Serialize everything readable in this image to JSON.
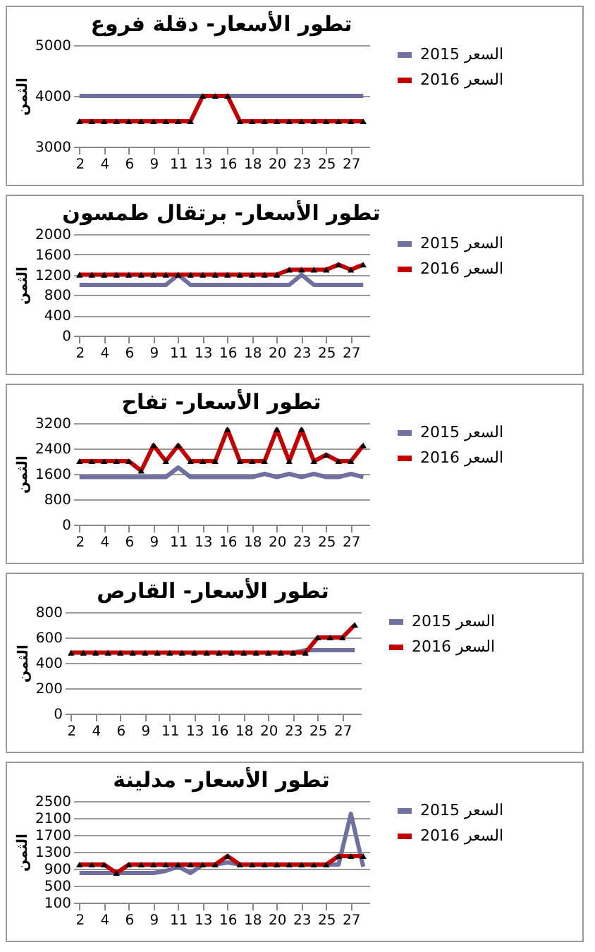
{
  "chart_data": [
    {
      "type": "line",
      "title": "تطور الأسعار- دقلة فروع",
      "ylabel": "الثمن",
      "categories": [
        "2",
        null,
        "4",
        null,
        "6",
        null,
        "9",
        null,
        "11",
        null,
        "13",
        null,
        "16",
        null,
        "18",
        null,
        "20",
        null,
        "23",
        null,
        "25",
        null,
        "27",
        null
      ],
      "ylim": [
        3000,
        5000
      ],
      "yticks": [
        3000,
        4000,
        5000
      ],
      "grid": "y",
      "legend": "right",
      "series": [
        {
          "name": "السعر 2015",
          "color": "#7070a0",
          "marker": "none",
          "values": [
            4000,
            4000,
            4000,
            4000,
            4000,
            4000,
            4000,
            4000,
            4000,
            4000,
            4000,
            4000,
            4000,
            4000,
            4000,
            4000,
            4000,
            4000,
            4000,
            4000,
            4000,
            4000,
            4000,
            4000
          ]
        },
        {
          "name": "السعر 2016",
          "color": "#c00000",
          "marker": "triangle",
          "values": [
            3500,
            3500,
            3500,
            3500,
            3500,
            3500,
            3500,
            3500,
            3500,
            3500,
            4000,
            4000,
            4000,
            3500,
            3500,
            3500,
            3500,
            3500,
            3500,
            3500,
            3500,
            3500,
            3500,
            3500
          ]
        }
      ]
    },
    {
      "type": "line",
      "title": "تطور الأسعار- برتقال طمسون",
      "ylabel": "الثمن",
      "categories": [
        "2",
        null,
        "4",
        null,
        "6",
        null,
        "9",
        null,
        "11",
        null,
        "13",
        null,
        "16",
        null,
        "18",
        null,
        "20",
        null,
        "23",
        null,
        "25",
        null,
        "27",
        null
      ],
      "ylim": [
        0,
        2000
      ],
      "yticks": [
        0,
        400,
        800,
        1200,
        1600,
        2000
      ],
      "grid": "y",
      "legend": "right",
      "series": [
        {
          "name": "السعر 2015",
          "color": "#7070a0",
          "marker": "none",
          "values": [
            1000,
            1000,
            1000,
            1000,
            1000,
            1000,
            1000,
            1000,
            1200,
            1000,
            1000,
            1000,
            1000,
            1000,
            1000,
            1000,
            1000,
            1000,
            1200,
            1000,
            1000,
            1000,
            1000,
            1000
          ]
        },
        {
          "name": "السعر 2016",
          "color": "#c00000",
          "marker": "triangle",
          "values": [
            1200,
            1200,
            1200,
            1200,
            1200,
            1200,
            1200,
            1200,
            1200,
            1200,
            1200,
            1200,
            1200,
            1200,
            1200,
            1200,
            1200,
            1300,
            1300,
            1300,
            1300,
            1400,
            1300,
            1400
          ]
        }
      ]
    },
    {
      "type": "line",
      "title": "تطور الأسعار- تفاح",
      "ylabel": "الثمن",
      "categories": [
        "2",
        null,
        "4",
        null,
        "6",
        null,
        "9",
        null,
        "11",
        null,
        "13",
        null,
        "16",
        null,
        "18",
        null,
        "20",
        null,
        "23",
        null,
        "25",
        null,
        "27",
        null
      ],
      "ylim": [
        0,
        3200
      ],
      "yticks": [
        0,
        800,
        1600,
        2400,
        3200
      ],
      "grid": "y",
      "legend": "right",
      "series": [
        {
          "name": "السعر 2015",
          "color": "#7070a0",
          "marker": "none",
          "values": [
            1500,
            1500,
            1500,
            1500,
            1500,
            1500,
            1500,
            1500,
            1800,
            1500,
            1500,
            1500,
            1500,
            1500,
            1500,
            1600,
            1500,
            1600,
            1500,
            1600,
            1500,
            1500,
            1600,
            1500
          ]
        },
        {
          "name": "السعر 2016",
          "color": "#c00000",
          "marker": "triangle",
          "values": [
            2000,
            2000,
            2000,
            2000,
            2000,
            1700,
            2500,
            2000,
            2500,
            2000,
            2000,
            2000,
            3000,
            2000,
            2000,
            2000,
            3000,
            2000,
            3000,
            2000,
            2200,
            2000,
            2000,
            2500
          ]
        }
      ]
    },
    {
      "type": "line",
      "title": "تطور الأسعار- القارص",
      "ylabel": "الثمن",
      "categories": [
        "2",
        null,
        "4",
        null,
        "6",
        null,
        "9",
        null,
        "11",
        null,
        "13",
        null,
        "16",
        null,
        "18",
        null,
        "20",
        null,
        "23",
        null,
        "25",
        null,
        "27",
        null
      ],
      "ylim": [
        0,
        800
      ],
      "yticks": [
        0,
        200,
        400,
        600,
        800
      ],
      "grid": "y",
      "legend": "right",
      "series": [
        {
          "name": "السعر 2015",
          "color": "#7070a0",
          "marker": "none",
          "values": [
            null,
            null,
            null,
            null,
            null,
            null,
            null,
            null,
            null,
            null,
            null,
            null,
            null,
            null,
            null,
            null,
            null,
            null,
            480,
            500,
            500,
            500,
            500,
            500
          ]
        },
        {
          "name": "السعر 2016",
          "color": "#c00000",
          "marker": "triangle",
          "values": [
            480,
            480,
            480,
            480,
            480,
            480,
            480,
            480,
            480,
            480,
            480,
            480,
            480,
            480,
            480,
            480,
            480,
            480,
            480,
            480,
            600,
            600,
            600,
            700
          ]
        }
      ]
    },
    {
      "type": "line",
      "title": "تطور الأسعار- مدلينة",
      "ylabel": "الثمن",
      "categories": [
        "2",
        null,
        "4",
        null,
        "6",
        null,
        "9",
        null,
        "11",
        null,
        "13",
        null,
        "16",
        null,
        "18",
        null,
        "20",
        null,
        "23",
        null,
        "25",
        null,
        "27",
        null
      ],
      "ylim": [
        100,
        2500
      ],
      "yticks": [
        100,
        500,
        900,
        1300,
        1700,
        2100,
        2500
      ],
      "grid": "y",
      "legend": "right",
      "series": [
        {
          "name": "السعر 2015",
          "color": "#7070a0",
          "marker": "none",
          "values": [
            800,
            800,
            800,
            800,
            800,
            800,
            800,
            850,
            950,
            800,
            1000,
            1000,
            1050,
            1000,
            1000,
            1000,
            1000,
            1000,
            1000,
            1000,
            1000,
            1000,
            2200,
            950
          ]
        },
        {
          "name": "السعر 2016",
          "color": "#c00000",
          "marker": "triangle",
          "values": [
            1000,
            1000,
            1000,
            800,
            1000,
            1000,
            1000,
            1000,
            1000,
            1000,
            1000,
            1000,
            1200,
            1000,
            1000,
            1000,
            1000,
            1000,
            1000,
            1000,
            1000,
            1200,
            1200,
            1200
          ]
        }
      ]
    }
  ]
}
